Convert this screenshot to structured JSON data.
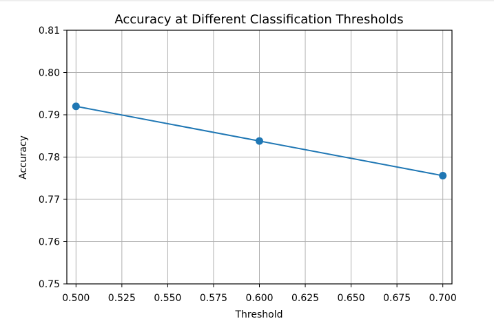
{
  "chart_data": {
    "type": "line",
    "title": "Accuracy at Different Classification Thresholds",
    "xlabel": "Threshold",
    "ylabel": "Accuracy",
    "x": [
      0.5,
      0.6,
      0.7
    ],
    "series": [
      {
        "name": "Accuracy",
        "values": [
          0.792,
          0.7838,
          0.7756
        ],
        "color": "#1f77b4",
        "marker": "circle"
      }
    ],
    "xlim": [
      0.495,
      0.705
    ],
    "ylim": [
      0.75,
      0.81
    ],
    "xticks": [
      0.5,
      0.525,
      0.55,
      0.575,
      0.6,
      0.625,
      0.65,
      0.675,
      0.7
    ],
    "xtick_labels": [
      "0.500",
      "0.525",
      "0.550",
      "0.575",
      "0.600",
      "0.625",
      "0.650",
      "0.675",
      "0.700"
    ],
    "yticks": [
      0.75,
      0.76,
      0.77,
      0.78,
      0.79,
      0.8,
      0.81
    ],
    "ytick_labels": [
      "0.75",
      "0.76",
      "0.77",
      "0.78",
      "0.79",
      "0.80",
      "0.81"
    ],
    "grid": true,
    "grid_color": "#b0b0b0"
  }
}
